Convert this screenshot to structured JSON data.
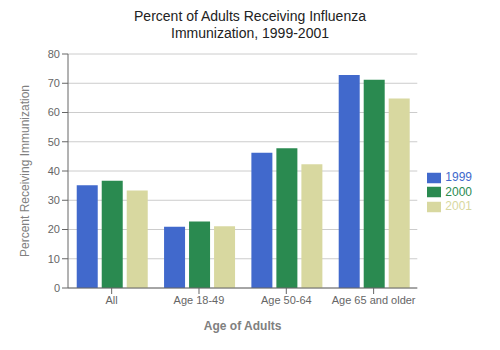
{
  "chart_data": {
    "type": "bar",
    "title": "Percent of Adults Receiving Influenza\nImmunization, 1999-2001",
    "xlabel": "Age of Adults",
    "ylabel": "Percent Receiving Immunization",
    "categories": [
      "All",
      "Age 18-49",
      "Age 50-64",
      "Age 65 and older"
    ],
    "series": [
      {
        "name": "1999",
        "color": "#4169cc",
        "values": [
          35.1,
          20.9,
          46.2,
          72.8
        ]
      },
      {
        "name": "2000",
        "color": "#2a8a50",
        "values": [
          36.7,
          22.7,
          47.8,
          71.2
        ]
      },
      {
        "name": "2001",
        "color": "#d8d8a0",
        "values": [
          33.3,
          21.1,
          42.3,
          64.8
        ]
      }
    ],
    "ylim": [
      0,
      80
    ],
    "yticks": [
      0,
      10,
      20,
      30,
      40,
      50,
      60,
      70,
      80
    ],
    "grid": true,
    "legend": "right"
  }
}
